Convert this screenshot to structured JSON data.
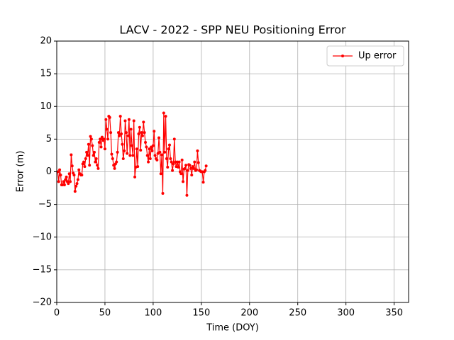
{
  "chart_data": {
    "type": "line",
    "title": "LACV - 2022 - SPP NEU Positioning Error",
    "x_label": "Time (DOY)",
    "y_label": "Error (m)",
    "xlim": [
      0,
      365
    ],
    "xticks": [
      0,
      50,
      100,
      150,
      200,
      250,
      300,
      350
    ],
    "ylim": [
      -20,
      20
    ],
    "yticks": [
      {
        "value": -20,
        "label": "−20"
      },
      {
        "value": -15,
        "label": "−15"
      },
      {
        "value": -10,
        "label": "−10"
      },
      {
        "value": -5,
        "label": "−5"
      },
      0,
      5,
      10,
      15,
      20
    ],
    "grid": true,
    "legend": "upper right",
    "x": [
      1,
      2,
      3,
      4,
      5,
      6,
      7,
      8,
      9,
      10,
      11,
      12,
      13,
      14,
      15,
      16,
      17,
      18,
      19,
      20,
      21,
      22,
      23,
      24,
      25,
      26,
      27,
      28,
      29,
      30,
      31,
      32,
      33,
      34,
      35,
      36,
      37,
      38,
      39,
      40,
      41,
      42,
      43,
      44,
      45,
      46,
      47,
      48,
      49,
      50,
      51,
      52,
      53,
      54,
      55,
      56,
      57,
      58,
      59,
      60,
      61,
      62,
      63,
      64,
      65,
      66,
      67,
      68,
      69,
      70,
      71,
      72,
      73,
      74,
      75,
      76,
      77,
      78,
      79,
      80,
      81,
      82,
      83,
      84,
      85,
      86,
      87,
      88,
      89,
      90,
      91,
      92,
      93,
      94,
      95,
      96,
      97,
      98,
      99,
      100,
      101,
      102,
      103,
      104,
      105,
      106,
      107,
      108,
      109,
      110,
      111,
      112,
      113,
      114,
      115,
      116,
      117,
      118,
      119,
      120,
      121,
      122,
      123,
      124,
      125,
      126,
      127,
      128,
      129,
      130,
      131,
      132,
      133,
      134,
      135,
      136,
      137,
      138,
      139,
      140,
      141,
      142,
      143,
      144,
      145,
      146,
      147,
      148,
      149,
      150,
      151,
      152,
      153,
      154,
      155
    ],
    "series": [
      {
        "name": "Up error",
        "color": "#ff0000",
        "values": [
          0,
          -1.5,
          0.3,
          -0.5,
          -2,
          -2,
          -1.5,
          -2,
          -1.2,
          -0.8,
          -1.5,
          -1.8,
          -0.3,
          -1.5,
          2.6,
          0.9,
          -0.2,
          -0.5,
          -3,
          -2.2,
          -1.8,
          -1.2,
          0.3,
          -0.3,
          -0.5,
          -0.5,
          1.2,
          1.5,
          0.8,
          2,
          3,
          2.5,
          4.2,
          1,
          5.4,
          5,
          4,
          2.5,
          3,
          1.5,
          2,
          1,
          0.5,
          4.5,
          5,
          3.8,
          5.3,
          4.8,
          5,
          3.5,
          8,
          6.5,
          5,
          8.5,
          8.3,
          6,
          2.7,
          2,
          1,
          0.5,
          1.2,
          1.5,
          3,
          6,
          5.5,
          8.5,
          5.8,
          4.2,
          2,
          3.2,
          7.8,
          6,
          2.8,
          5.5,
          8,
          2.5,
          6.5,
          4,
          2.5,
          7.8,
          -0.8,
          0.7,
          3.5,
          0.8,
          5.8,
          6.8,
          3.3,
          6,
          5.5,
          7.6,
          6,
          4.5,
          3.8,
          2.5,
          1.5,
          3.5,
          2,
          3.8,
          3.2,
          4,
          6.2,
          2.5,
          2,
          1.8,
          2.8,
          5.2,
          3,
          -0.3,
          2.6,
          -3.3,
          9,
          3,
          8.5,
          2,
          0.7,
          3.5,
          4.1,
          2,
          1.5,
          0.2,
          1.2,
          5,
          1.5,
          0.8,
          1.5,
          0.7,
          1.5,
          0,
          -0.3,
          1.8,
          -1.5,
          0.4,
          0.5,
          1,
          -3.6,
          0.2,
          1.1,
          1,
          0.5,
          -0.5,
          0.8,
          0.5,
          1.5,
          0.2,
          0.3,
          3.2,
          1.4,
          0.2,
          0.1,
          0,
          0,
          -1.6,
          0,
          0.2,
          0.9
        ]
      }
    ]
  }
}
